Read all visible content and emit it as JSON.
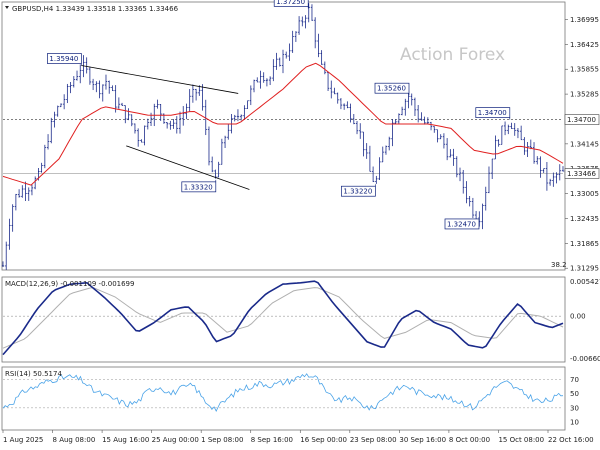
{
  "chart_data": {
    "type": "candlestick",
    "symbol_header": "GBPUSD,H4  1.33439 1.33518 1.33365 1.33466",
    "watermark": "Action Forex",
    "colors": {
      "price": "#1a2a8a",
      "ma": "#e02020",
      "macd": "#1a2a8a",
      "signal": "#b0b0b0",
      "rsi": "#4aa3e8",
      "level": "#555555"
    },
    "price_pane": {
      "ylim": [
        1.313,
        1.3735
      ],
      "y_ticks": [
        "1.36995",
        "1.36425",
        "1.35855",
        "1.35285",
        "1.34715",
        "1.34145",
        "1.33575",
        "1.33005",
        "1.32435",
        "1.31865",
        "1.31295"
      ],
      "current_price_label": "1.33466",
      "current_price": 1.33466,
      "horizontal_level_label": "1.34700",
      "horizontal_level": 1.347,
      "corner_note": "38.2",
      "close_path": [
        [
          0,
          1.3135
        ],
        [
          0.01,
          1.323
        ],
        [
          0.02,
          1.329
        ],
        [
          0.035,
          1.331
        ],
        [
          0.05,
          1.332
        ],
        [
          0.065,
          1.334
        ],
        [
          0.08,
          1.343
        ],
        [
          0.095,
          1.349
        ],
        [
          0.11,
          1.352
        ],
        [
          0.125,
          1.356
        ],
        [
          0.14,
          1.3594
        ],
        [
          0.155,
          1.357
        ],
        [
          0.17,
          1.354
        ],
        [
          0.185,
          1.356
        ],
        [
          0.2,
          1.351
        ],
        [
          0.215,
          1.349
        ],
        [
          0.23,
          1.346
        ],
        [
          0.245,
          1.342
        ],
        [
          0.26,
          1.348
        ],
        [
          0.275,
          1.35
        ],
        [
          0.29,
          1.347
        ],
        [
          0.305,
          1.345
        ],
        [
          0.32,
          1.348
        ],
        [
          0.335,
          1.352
        ],
        [
          0.35,
          1.354
        ],
        [
          0.362,
          1.345
        ],
        [
          0.372,
          1.334
        ],
        [
          0.38,
          1.3333
        ],
        [
          0.39,
          1.34
        ],
        [
          0.4,
          1.345
        ],
        [
          0.415,
          1.347
        ],
        [
          0.43,
          1.35
        ],
        [
          0.445,
          1.354
        ],
        [
          0.46,
          1.358
        ],
        [
          0.475,
          1.356
        ],
        [
          0.49,
          1.36
        ],
        [
          0.505,
          1.362
        ],
        [
          0.52,
          1.366
        ],
        [
          0.535,
          1.37
        ],
        [
          0.545,
          1.3725
        ],
        [
          0.555,
          1.368
        ],
        [
          0.565,
          1.36
        ],
        [
          0.58,
          1.355
        ],
        [
          0.595,
          1.352
        ],
        [
          0.61,
          1.35
        ],
        [
          0.625,
          1.348
        ],
        [
          0.64,
          1.343
        ],
        [
          0.655,
          1.335
        ],
        [
          0.665,
          1.3322
        ],
        [
          0.68,
          1.34
        ],
        [
          0.695,
          1.346
        ],
        [
          0.71,
          1.35
        ],
        [
          0.725,
          1.3526
        ],
        [
          0.74,
          1.348
        ],
        [
          0.755,
          1.346
        ],
        [
          0.77,
          1.344
        ],
        [
          0.785,
          1.342
        ],
        [
          0.8,
          1.338
        ],
        [
          0.815,
          1.334
        ],
        [
          0.83,
          1.329
        ],
        [
          0.84,
          1.326
        ],
        [
          0.85,
          1.3247
        ],
        [
          0.862,
          1.331
        ],
        [
          0.875,
          1.34
        ],
        [
          0.89,
          1.344
        ],
        [
          0.905,
          1.347
        ],
        [
          0.915,
          1.344
        ],
        [
          0.93,
          1.341
        ],
        [
          0.945,
          1.339
        ],
        [
          0.96,
          1.336
        ],
        [
          0.975,
          1.332
        ],
        [
          0.99,
          1.3345
        ],
        [
          1.0,
          1.3347
        ]
      ],
      "ma_path": [
        [
          0,
          1.334
        ],
        [
          0.05,
          1.332
        ],
        [
          0.1,
          1.338
        ],
        [
          0.14,
          1.347
        ],
        [
          0.18,
          1.35
        ],
        [
          0.22,
          1.349
        ],
        [
          0.26,
          1.348
        ],
        [
          0.3,
          1.348
        ],
        [
          0.34,
          1.349
        ],
        [
          0.38,
          1.346
        ],
        [
          0.42,
          1.346
        ],
        [
          0.46,
          1.35
        ],
        [
          0.5,
          1.354
        ],
        [
          0.54,
          1.359
        ],
        [
          0.56,
          1.36
        ],
        [
          0.6,
          1.356
        ],
        [
          0.64,
          1.351
        ],
        [
          0.68,
          1.346
        ],
        [
          0.72,
          1.346
        ],
        [
          0.76,
          1.346
        ],
        [
          0.8,
          1.345
        ],
        [
          0.84,
          1.34
        ],
        [
          0.88,
          1.339
        ],
        [
          0.92,
          1.341
        ],
        [
          0.96,
          1.34
        ],
        [
          1.0,
          1.337
        ]
      ],
      "callouts": [
        {
          "label": "1.35940",
          "x": 0.14,
          "value": 1.3594,
          "pos": "above"
        },
        {
          "label": "1.37250",
          "x": 0.545,
          "value": 1.3725,
          "pos": "above"
        },
        {
          "label": "1.35260",
          "x": 0.725,
          "value": 1.3526,
          "pos": "above"
        },
        {
          "label": "1.34700",
          "x": 0.905,
          "value": 1.347,
          "pos": "above"
        },
        {
          "label": "1.33320",
          "x": 0.38,
          "value": 1.3332,
          "pos": "below"
        },
        {
          "label": "1.33220",
          "x": 0.665,
          "value": 1.3322,
          "pos": "below"
        },
        {
          "label": "1.32470",
          "x": 0.85,
          "value": 1.3247,
          "pos": "below"
        }
      ],
      "trendlines": [
        {
          "from": [
            0.14,
            1.3594
          ],
          "to": [
            0.42,
            1.353
          ]
        },
        {
          "from": [
            0.22,
            1.341
          ],
          "to": [
            0.44,
            1.331
          ]
        }
      ]
    },
    "macd_pane": {
      "title": "MACD(12,26,9) -0.001109 -0.001699",
      "y_ticks": [
        "0.005427",
        "0.00",
        "-0.006603"
      ],
      "ylim": [
        -0.007,
        0.0058
      ],
      "macd_path": [
        [
          0,
          -0.006
        ],
        [
          0.03,
          -0.003
        ],
        [
          0.06,
          0.001
        ],
        [
          0.09,
          0.004
        ],
        [
          0.12,
          0.005
        ],
        [
          0.15,
          0.0052
        ],
        [
          0.18,
          0.003
        ],
        [
          0.21,
          0.0005
        ],
        [
          0.24,
          -0.0025
        ],
        [
          0.27,
          -0.001
        ],
        [
          0.3,
          0.001
        ],
        [
          0.33,
          0.0015
        ],
        [
          0.36,
          -0.001
        ],
        [
          0.38,
          -0.004
        ],
        [
          0.41,
          -0.003
        ],
        [
          0.44,
          0.001
        ],
        [
          0.47,
          0.0035
        ],
        [
          0.5,
          0.005
        ],
        [
          0.53,
          0.0052
        ],
        [
          0.56,
          0.0055
        ],
        [
          0.59,
          0.002
        ],
        [
          0.62,
          -0.001
        ],
        [
          0.65,
          -0.004
        ],
        [
          0.68,
          -0.005
        ],
        [
          0.71,
          -0.0005
        ],
        [
          0.74,
          0.001
        ],
        [
          0.77,
          -0.001
        ],
        [
          0.8,
          -0.002
        ],
        [
          0.83,
          -0.0045
        ],
        [
          0.86,
          -0.005
        ],
        [
          0.89,
          -0.001
        ],
        [
          0.92,
          0.002
        ],
        [
          0.95,
          -0.001
        ],
        [
          0.98,
          -0.0018
        ],
        [
          1.0,
          -0.0011
        ]
      ],
      "signal_path": [
        [
          0,
          -0.005
        ],
        [
          0.04,
          -0.0035
        ],
        [
          0.08,
          0.0
        ],
        [
          0.12,
          0.0035
        ],
        [
          0.16,
          0.0045
        ],
        [
          0.2,
          0.003
        ],
        [
          0.24,
          0.0005
        ],
        [
          0.28,
          -0.001
        ],
        [
          0.32,
          0.0005
        ],
        [
          0.36,
          0.0005
        ],
        [
          0.4,
          -0.0025
        ],
        [
          0.44,
          -0.0015
        ],
        [
          0.48,
          0.002
        ],
        [
          0.52,
          0.004
        ],
        [
          0.56,
          0.0045
        ],
        [
          0.6,
          0.003
        ],
        [
          0.64,
          -0.0005
        ],
        [
          0.68,
          -0.0035
        ],
        [
          0.72,
          -0.0025
        ],
        [
          0.76,
          -0.0005
        ],
        [
          0.8,
          -0.001
        ],
        [
          0.84,
          -0.003
        ],
        [
          0.88,
          -0.0035
        ],
        [
          0.92,
          0.0005
        ],
        [
          0.96,
          0.0
        ],
        [
          1.0,
          -0.0017
        ]
      ]
    },
    "rsi_pane": {
      "title": "RSI(14) 50.5174",
      "y_ticks": [
        "70",
        "50",
        "30",
        "10"
      ],
      "levels": [
        70,
        30
      ],
      "ylim": [
        0,
        85
      ],
      "rsi_path": [
        [
          0,
          30
        ],
        [
          0.02,
          40
        ],
        [
          0.04,
          55
        ],
        [
          0.06,
          60
        ],
        [
          0.08,
          68
        ],
        [
          0.1,
          72
        ],
        [
          0.12,
          74
        ],
        [
          0.14,
          70
        ],
        [
          0.16,
          55
        ],
        [
          0.18,
          48
        ],
        [
          0.2,
          42
        ],
        [
          0.22,
          35
        ],
        [
          0.24,
          38
        ],
        [
          0.26,
          55
        ],
        [
          0.28,
          60
        ],
        [
          0.3,
          50
        ],
        [
          0.32,
          58
        ],
        [
          0.34,
          62
        ],
        [
          0.36,
          40
        ],
        [
          0.38,
          28
        ],
        [
          0.4,
          42
        ],
        [
          0.42,
          55
        ],
        [
          0.44,
          60
        ],
        [
          0.46,
          65
        ],
        [
          0.48,
          62
        ],
        [
          0.5,
          66
        ],
        [
          0.52,
          70
        ],
        [
          0.54,
          78
        ],
        [
          0.56,
          72
        ],
        [
          0.58,
          48
        ],
        [
          0.6,
          40
        ],
        [
          0.62,
          45
        ],
        [
          0.64,
          35
        ],
        [
          0.66,
          28
        ],
        [
          0.68,
          45
        ],
        [
          0.7,
          55
        ],
        [
          0.72,
          62
        ],
        [
          0.74,
          52
        ],
        [
          0.76,
          50
        ],
        [
          0.78,
          46
        ],
        [
          0.8,
          42
        ],
        [
          0.82,
          38
        ],
        [
          0.84,
          30
        ],
        [
          0.86,
          45
        ],
        [
          0.88,
          60
        ],
        [
          0.9,
          66
        ],
        [
          0.92,
          55
        ],
        [
          0.94,
          46
        ],
        [
          0.96,
          38
        ],
        [
          0.98,
          42
        ],
        [
          1.0,
          50
        ]
      ]
    },
    "x_ticks": [
      "1 Aug 2025",
      "8 Aug 08:00",
      "15 Aug 16:00",
      "25 Aug 00:00",
      "1 Sep 08:00",
      "8 Sep 16:00",
      "16 Sep 00:00",
      "23 Sep 08:00",
      "30 Sep 16:00",
      "8 Oct 00:00",
      "15 Oct 08:00",
      "22 Oct 16:00"
    ]
  }
}
